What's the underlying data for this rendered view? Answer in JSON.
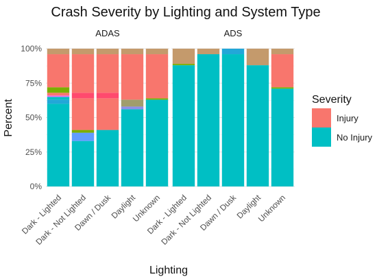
{
  "chart_data": {
    "type": "bar",
    "stacked": true,
    "title": "Crash Severity by Lighting and System Type",
    "xlabel": "Lighting",
    "ylabel": "Percent",
    "ylim": [
      0,
      1
    ],
    "yticks": [
      "0%",
      "25%",
      "50%",
      "75%",
      "100%"
    ],
    "grid": true,
    "legend": {
      "title": "Severity",
      "placement": "right",
      "entries": [
        {
          "name": "Injury",
          "color": "#F8766D"
        },
        {
          "name": "No Injury",
          "color": "#00BFC4"
        }
      ]
    },
    "categories": [
      "Dark - Lighted",
      "Dark - Not Lighted",
      "Dawn / Dusk",
      "Daylight",
      "Unknown"
    ],
    "facets": [
      {
        "name": "ADAS",
        "segments": [
          [
            {
              "color": "#00BFC4",
              "from": 0.0,
              "to": 0.6
            },
            {
              "color": "#22A7D8",
              "from": 0.6,
              "to": 0.63
            },
            {
              "color": "#00BFC4",
              "from": 0.63,
              "to": 0.65
            },
            {
              "color": "#E76BF3",
              "from": 0.65,
              "to": 0.66
            },
            {
              "color": "#F8766D",
              "from": 0.66,
              "to": 0.68
            },
            {
              "color": "#7CAE00",
              "from": 0.68,
              "to": 0.72
            },
            {
              "color": "#F8766D",
              "from": 0.72,
              "to": 0.96
            },
            {
              "color": "#C49A6C",
              "from": 0.96,
              "to": 1.0
            }
          ],
          [
            {
              "color": "#00BFC4",
              "from": 0.0,
              "to": 0.33
            },
            {
              "color": "#619CFF",
              "from": 0.33,
              "to": 0.39
            },
            {
              "color": "#7CAE00",
              "from": 0.39,
              "to": 0.41
            },
            {
              "color": "#F8766D",
              "from": 0.41,
              "to": 0.64
            },
            {
              "color": "#FF4A6E",
              "from": 0.64,
              "to": 0.68
            },
            {
              "color": "#F8766D",
              "from": 0.68,
              "to": 0.96
            },
            {
              "color": "#C49A6C",
              "from": 0.96,
              "to": 1.0
            }
          ],
          [
            {
              "color": "#00BFC4",
              "from": 0.0,
              "to": 0.41
            },
            {
              "color": "#F8766D",
              "from": 0.41,
              "to": 0.64
            },
            {
              "color": "#FF4A6E",
              "from": 0.64,
              "to": 0.68
            },
            {
              "color": "#F8766D",
              "from": 0.68,
              "to": 0.96
            },
            {
              "color": "#C49A6C",
              "from": 0.96,
              "to": 1.0
            }
          ],
          [
            {
              "color": "#00BFC4",
              "from": 0.0,
              "to": 0.56
            },
            {
              "color": "#8E8FE6",
              "from": 0.56,
              "to": 0.58
            },
            {
              "color": "#A09D6C",
              "from": 0.58,
              "to": 0.63
            },
            {
              "color": "#F8766D",
              "from": 0.63,
              "to": 0.96
            },
            {
              "color": "#C49A6C",
              "from": 0.96,
              "to": 1.0
            }
          ],
          [
            {
              "color": "#00BFC4",
              "from": 0.0,
              "to": 0.63
            },
            {
              "color": "#7CAE00",
              "from": 0.63,
              "to": 0.64
            },
            {
              "color": "#F8766D",
              "from": 0.64,
              "to": 0.96
            },
            {
              "color": "#C49A6C",
              "from": 0.96,
              "to": 1.0
            }
          ]
        ]
      },
      {
        "name": "ADS",
        "segments": [
          [
            {
              "color": "#00BFC4",
              "from": 0.0,
              "to": 0.88
            },
            {
              "color": "#7CAE00",
              "from": 0.88,
              "to": 0.89
            },
            {
              "color": "#C49A6C",
              "from": 0.89,
              "to": 1.0
            }
          ],
          [
            {
              "color": "#00BFC4",
              "from": 0.0,
              "to": 0.96
            },
            {
              "color": "#C49A6C",
              "from": 0.96,
              "to": 1.0
            }
          ],
          [
            {
              "color": "#00BFC4",
              "from": 0.0,
              "to": 0.96
            },
            {
              "color": "#22A7D8",
              "from": 0.96,
              "to": 1.0
            }
          ],
          [
            {
              "color": "#00BFC4",
              "from": 0.0,
              "to": 0.88
            },
            {
              "color": "#C49A6C",
              "from": 0.88,
              "to": 1.0
            }
          ],
          [
            {
              "color": "#00BFC4",
              "from": 0.0,
              "to": 0.71
            },
            {
              "color": "#7CAE00",
              "from": 0.71,
              "to": 0.72
            },
            {
              "color": "#F8766D",
              "from": 0.72,
              "to": 0.96
            },
            {
              "color": "#C49A6C",
              "from": 0.96,
              "to": 1.0
            }
          ]
        ]
      }
    ]
  }
}
